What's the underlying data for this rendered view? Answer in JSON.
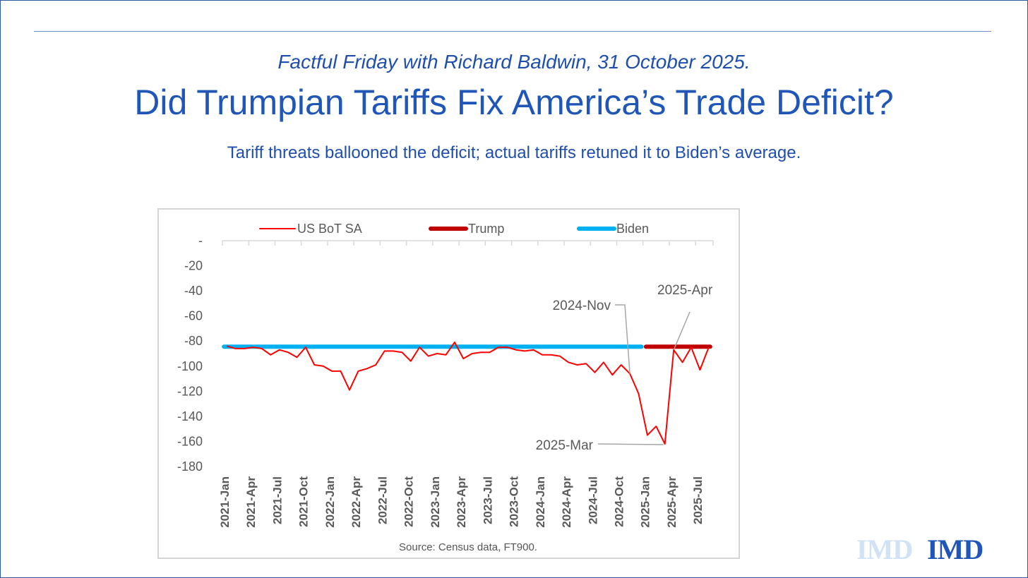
{
  "header": {
    "kicker": "Factful Friday with Richard Baldwin, 31 October 2025.",
    "title": "Did Trumpian Tariffs Fix America’s Trade Deficit?",
    "subtitle": "Tariff threats ballooned the deficit; actual tariffs retuned it to Biden’s average."
  },
  "footer": {
    "source": "Source: Census data, FT900.",
    "logo_faded": "IMD",
    "logo": "IMD"
  },
  "colors": {
    "text_blue": "#1f56b8",
    "series_us_bot": "#ff0000",
    "series_trump": "#c00000",
    "series_biden": "#00b0f0",
    "axis": "#d9d9d9",
    "label": "#595959"
  },
  "chart_data": {
    "type": "line",
    "legend_position": "top",
    "grid": false,
    "ylim": [
      -180,
      0
    ],
    "y_ticks": [
      {
        "value": 0,
        "label": "-"
      },
      {
        "value": -20,
        "label": "-20"
      },
      {
        "value": -40,
        "label": "-40"
      },
      {
        "value": -60,
        "label": "-60"
      },
      {
        "value": -80,
        "label": "-80"
      },
      {
        "value": -100,
        "label": "-100"
      },
      {
        "value": -120,
        "label": "-120"
      },
      {
        "value": -140,
        "label": "-140"
      },
      {
        "value": -160,
        "label": "-160"
      },
      {
        "value": -180,
        "label": "-180"
      }
    ],
    "x": [
      "2021-Jan",
      "2021-Feb",
      "2021-Mar",
      "2021-Apr",
      "2021-May",
      "2021-Jun",
      "2021-Jul",
      "2021-Aug",
      "2021-Sep",
      "2021-Oct",
      "2021-Nov",
      "2021-Dec",
      "2022-Jan",
      "2022-Feb",
      "2022-Mar",
      "2022-Apr",
      "2022-May",
      "2022-Jun",
      "2022-Jul",
      "2022-Aug",
      "2022-Sep",
      "2022-Oct",
      "2022-Nov",
      "2022-Dec",
      "2023-Jan",
      "2023-Feb",
      "2023-Mar",
      "2023-Apr",
      "2023-May",
      "2023-Jun",
      "2023-Jul",
      "2023-Aug",
      "2023-Sep",
      "2023-Oct",
      "2023-Nov",
      "2023-Dec",
      "2024-Jan",
      "2024-Feb",
      "2024-Mar",
      "2024-Apr",
      "2024-May",
      "2024-Jun",
      "2024-Jul",
      "2024-Aug",
      "2024-Sep",
      "2024-Oct",
      "2024-Nov",
      "2024-Dec",
      "2025-Jan",
      "2025-Feb",
      "2025-Mar",
      "2025-Apr",
      "2025-May",
      "2025-Jun",
      "2025-Jul",
      "2025-Aug"
    ],
    "x_tick_labels": [
      "2021-Jan",
      "2021-Apr",
      "2021-Jul",
      "2021-Oct",
      "2022-Jan",
      "2022-Apr",
      "2022-Jul",
      "2022-Oct",
      "2023-Jan",
      "2023-Apr",
      "2023-Jul",
      "2023-Oct",
      "2024-Jan",
      "2024-Apr",
      "2024-Jul",
      "2024-Oct",
      "2025-Jan",
      "2025-Apr",
      "2025-Jul"
    ],
    "series": [
      {
        "name": "US BoT SA",
        "values": [
          -84,
          -86,
          -86,
          -85,
          -86,
          -91,
          -87,
          -89,
          -93,
          -85,
          -99,
          -100,
          -104,
          -104,
          -119,
          -104,
          -102,
          -99,
          -88,
          -88,
          -89,
          -96,
          -85,
          -92,
          -90,
          -91,
          -81,
          -94,
          -90,
          -89,
          -89,
          -85,
          -85,
          -87,
          -88,
          -87,
          -91,
          -91,
          -92,
          -97,
          -99,
          -98,
          -105,
          -97,
          -107,
          -99,
          -106,
          -122,
          -155,
          -148,
          -162,
          -87,
          -97,
          -85,
          -103,
          -85
        ]
      },
      {
        "name": "Trump",
        "start": "2025-Jan",
        "end": "2025-Aug",
        "value": -84.5
      },
      {
        "name": "Biden",
        "start": "2021-Jan",
        "end": "2024-Dec",
        "value": -84.5
      }
    ],
    "annotations": [
      {
        "text": "2024-Nov",
        "points_to": "2024-Nov"
      },
      {
        "text": "2025-Mar",
        "points_to": "2025-Mar"
      },
      {
        "text": "2025-Apr",
        "points_to": "2025-Apr"
      }
    ]
  }
}
